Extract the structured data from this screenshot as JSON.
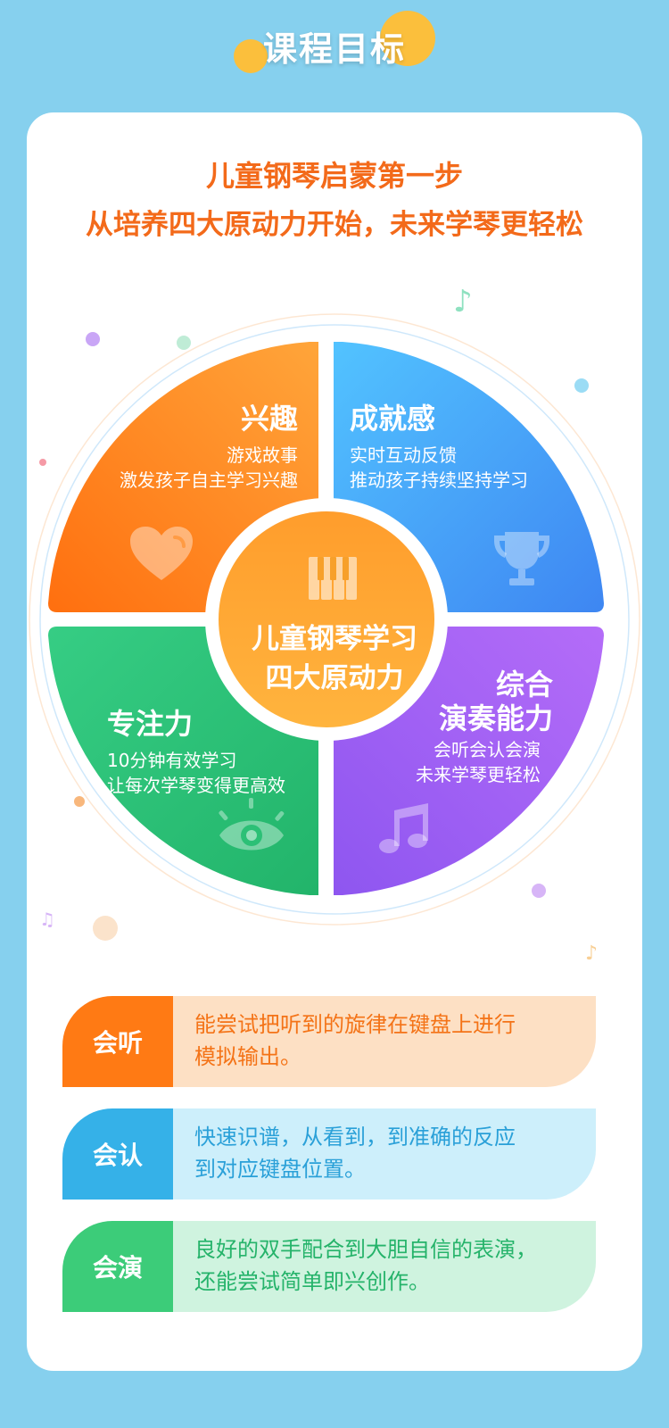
{
  "header": {
    "title": "课程目标"
  },
  "slogan": {
    "line1": "儿童钢琴启蒙第一步",
    "line2": "从培养四大原动力开始，未来学琴更轻松"
  },
  "center": {
    "line1": "儿童钢琴学习",
    "line2": "四大原动力"
  },
  "quadrants": {
    "interest": {
      "title": "兴趣",
      "line1": "游戏故事",
      "line2": "激发孩子自主学习兴趣",
      "icon": "heart-icon",
      "color_start": "#ffa53a",
      "color_end": "#ff6f0f"
    },
    "achievement": {
      "title": "成就感",
      "line1": "实时互动反馈",
      "line2": "推动孩子持续坚持学习",
      "icon": "trophy-icon",
      "color_start": "#52c3ff",
      "color_end": "#3e86f2"
    },
    "focus": {
      "title": "专注力",
      "line1": "10分钟有效学习",
      "line2": "让每次学琴变得更高效",
      "icon": "eye-icon",
      "color_start": "#36cd84",
      "color_end": "#22b46a"
    },
    "performance": {
      "title_line1": "综合",
      "title_line2": "演奏能力",
      "line1": "会听会认会演",
      "line2": "未来学琴更轻松",
      "icon": "music-note-icon",
      "color_start": "#b46cf8",
      "color_end": "#8e56f0"
    }
  },
  "skills": [
    {
      "label": "会听",
      "line1": "能尝试把听到的旋律在键盘上进行",
      "line2": "模拟输出。",
      "label_color": "#ff7a14",
      "bg_color": "#fde0c4",
      "text_color": "#f47317"
    },
    {
      "label": "会认",
      "line1": "快速识谱，从看到，到准确的反应",
      "line2": "到对应键盘位置。",
      "label_color": "#35b1e8",
      "bg_color": "#cdeffb",
      "text_color": "#2aa0d8"
    },
    {
      "label": "会演",
      "line1": "良好的双手配合到大胆自信的表演，",
      "line2": "还能尝试简单即兴创作。",
      "label_color": "#3ccc79",
      "bg_color": "#cff3df",
      "text_color": "#25b36a"
    }
  ]
}
